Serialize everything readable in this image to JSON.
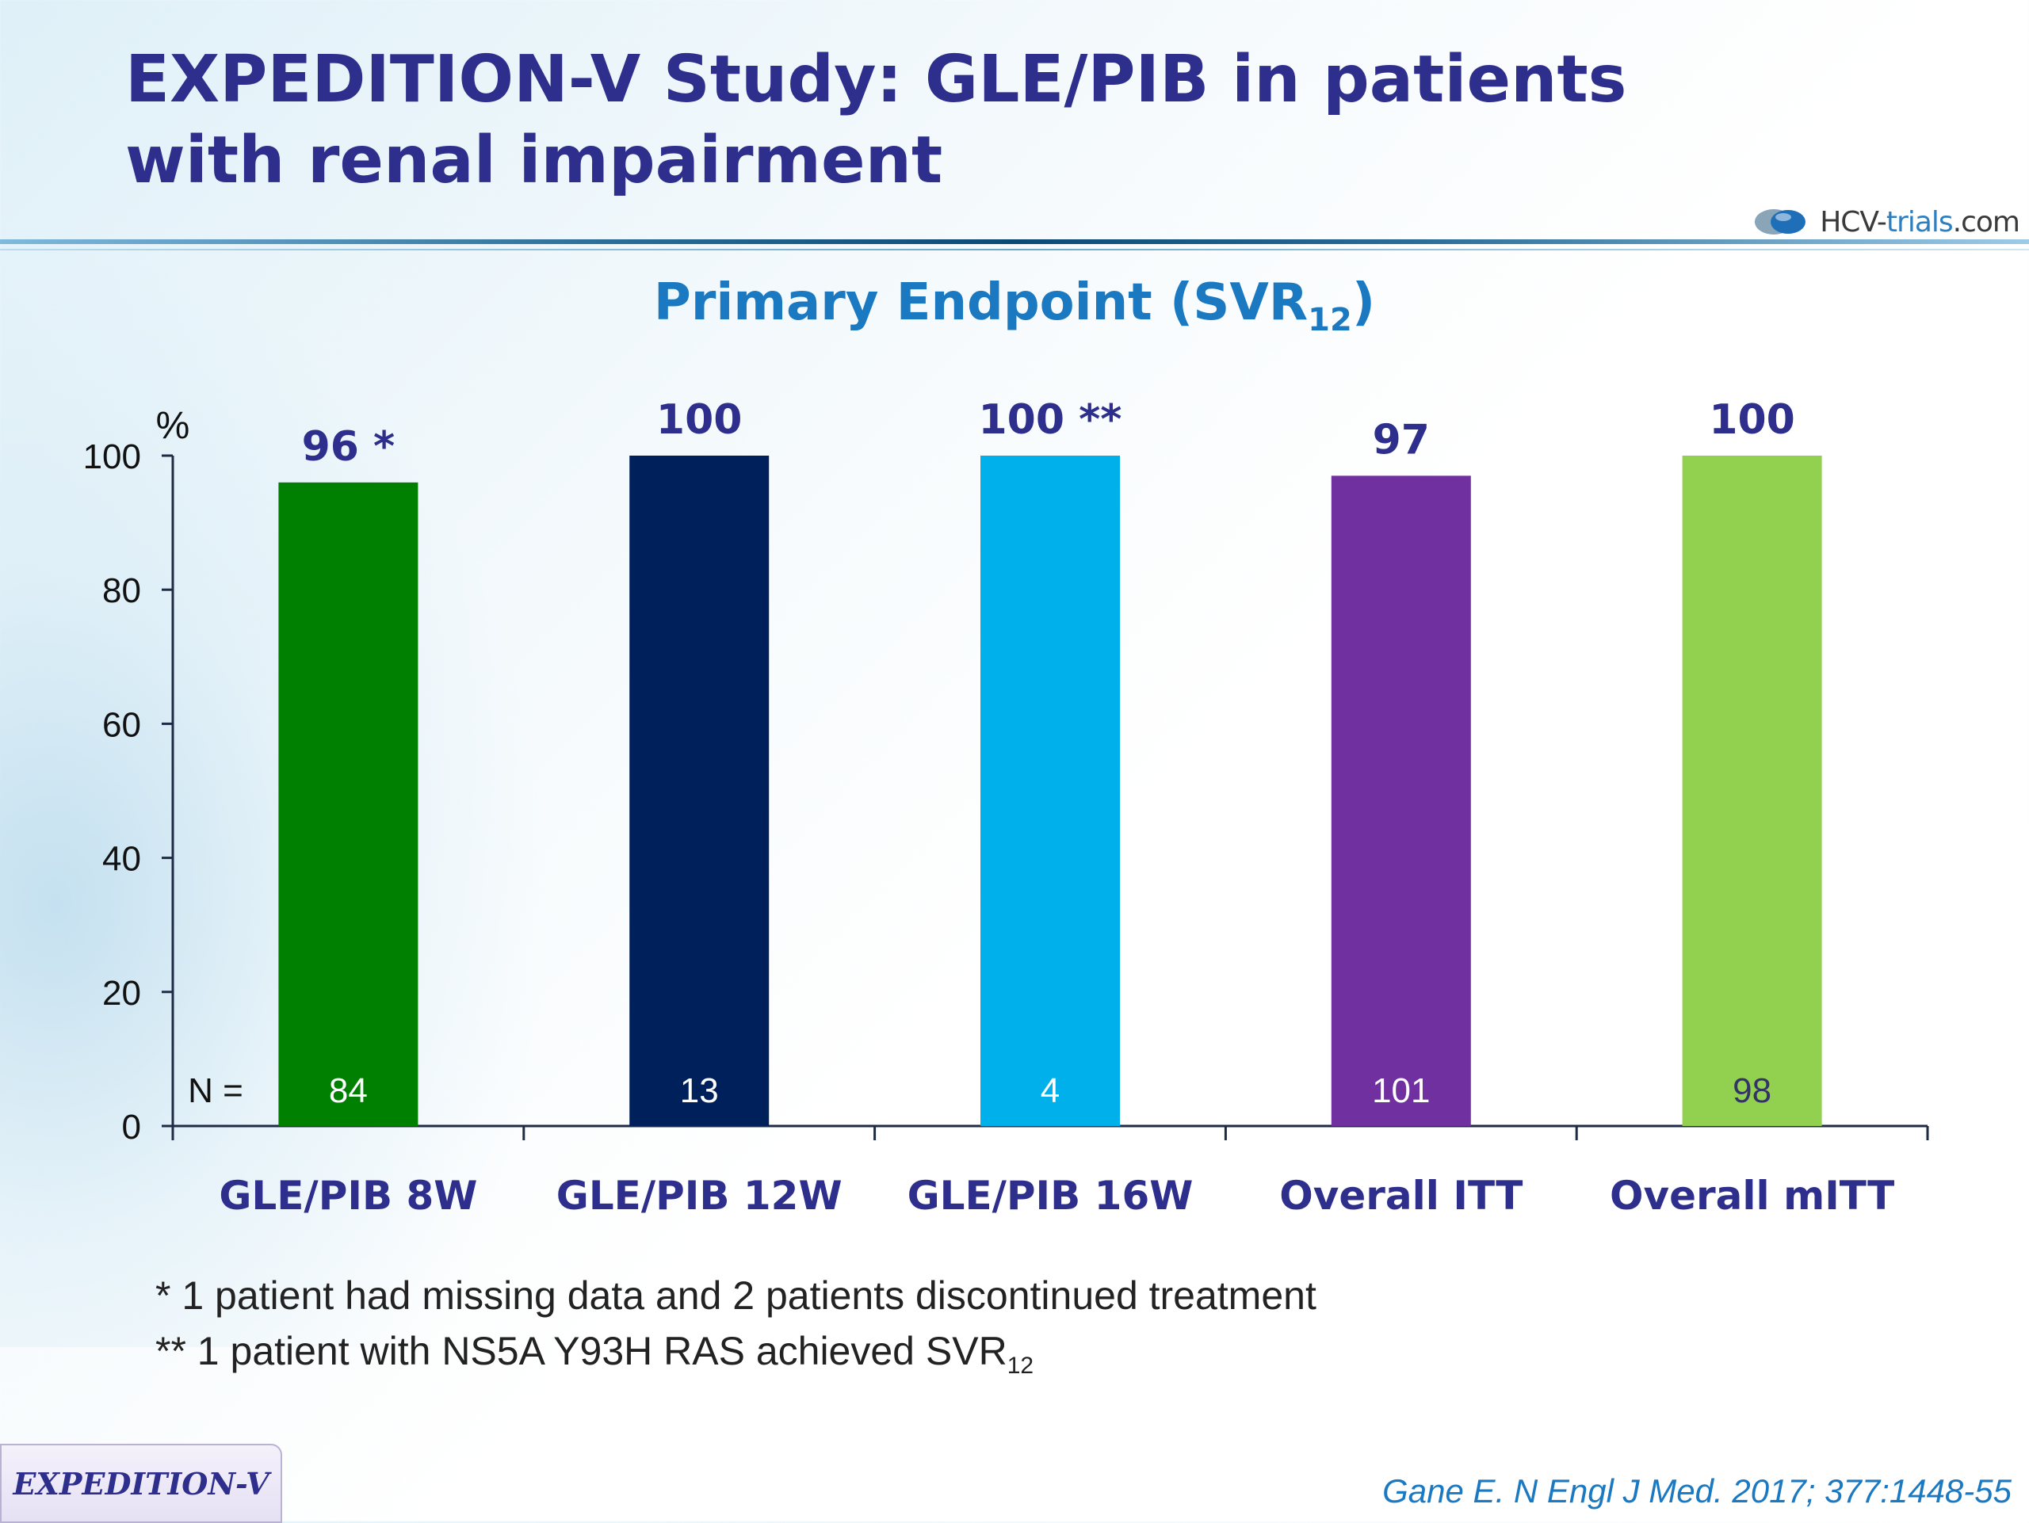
{
  "slide": {
    "title_line1": "EXPEDITION-V Study: GLE/PIB in patients",
    "title_line2": "with renal impairment",
    "logo_text_a": "HCV-",
    "logo_text_b": "trials",
    "logo_text_c": ".com",
    "subtitle_main": "Primary Endpoint (SVR",
    "subtitle_sub": "12",
    "subtitle_end": ")",
    "note1": "* 1 patient had missing data and 2 patients discontinued treatment",
    "note2_main": "** 1 patient with NS5A Y93H RAS achieved SVR",
    "note2_sub": "12",
    "badge": "EXPEDITION-V",
    "citation": "Gane E. N Engl J Med. 2017; 377:1448-55"
  },
  "chart_data": {
    "type": "bar",
    "ylabel": "%",
    "ylim": [
      0,
      100
    ],
    "yticks": [
      0,
      20,
      40,
      60,
      80,
      100
    ],
    "n_label": "N =",
    "categories": [
      "GLE/PIB 8W",
      "GLE/PIB 12W",
      "GLE/PIB 16W",
      "Overall ITT",
      "Overall mITT"
    ],
    "values": [
      96,
      100,
      100,
      97,
      100
    ],
    "value_labels": [
      "96 *",
      "100",
      "100 **",
      "97",
      "100"
    ],
    "n_values": [
      "84",
      "13",
      "4",
      "101",
      "98"
    ],
    "colors": [
      "#008000",
      "#00205b",
      "#00b0ea",
      "#7030a0",
      "#92d050"
    ],
    "n_text_colors": [
      "#ffffff",
      "#ffffff",
      "#ffffff",
      "#ffffff",
      "#333366"
    ],
    "label_color": "#2e2e8c",
    "grid": false
  }
}
